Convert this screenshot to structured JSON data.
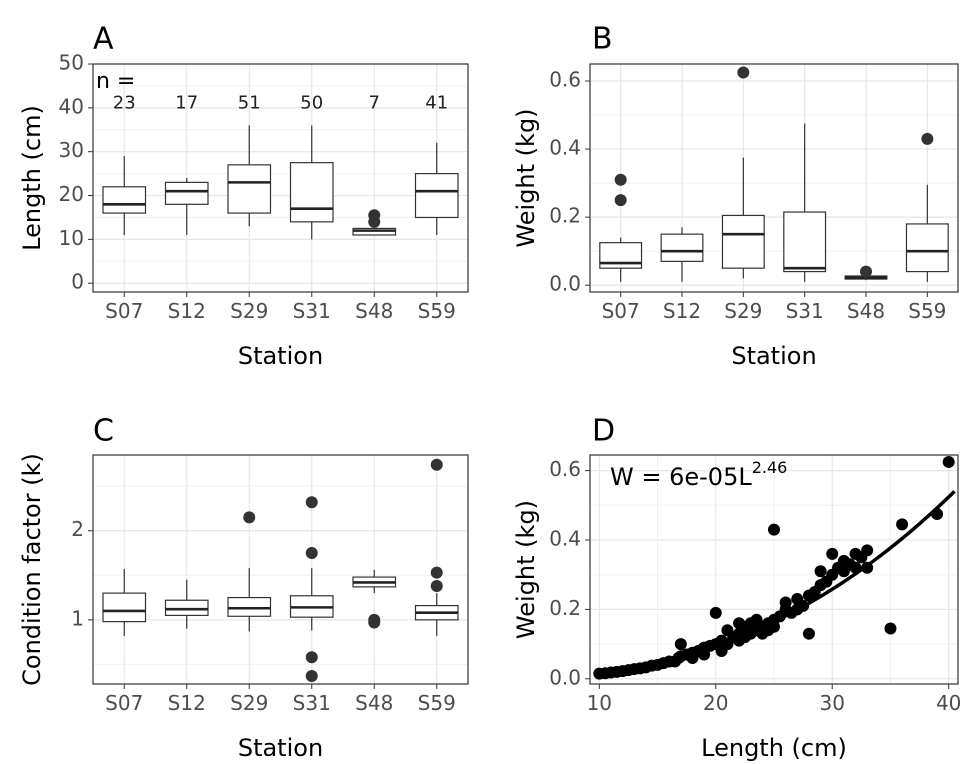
{
  "chart_data": [
    {
      "panel": "A",
      "type": "box",
      "xlabel": "Station",
      "ylabel": "Length (cm)",
      "ylim": [
        -2,
        50
      ],
      "yticks": [
        0,
        10,
        20,
        30,
        40,
        50
      ],
      "categories": [
        "S07",
        "S12",
        "S29",
        "S31",
        "S48",
        "S59"
      ],
      "n_label": "n =",
      "counts": [
        "23",
        "17",
        "51",
        "50",
        "7",
        "41"
      ],
      "boxes": [
        {
          "min": 11,
          "q1": 16,
          "median": 18,
          "q3": 22,
          "max": 29,
          "outliers": []
        },
        {
          "min": 11,
          "q1": 18,
          "median": 21,
          "q3": 23,
          "max": 24,
          "outliers": []
        },
        {
          "min": 13,
          "q1": 16,
          "median": 23,
          "q3": 27,
          "max": 36,
          "outliers": []
        },
        {
          "min": 10,
          "q1": 14,
          "median": 17,
          "q3": 27.5,
          "max": 36,
          "outliers": []
        },
        {
          "min": 11,
          "q1": 11,
          "median": 12,
          "q3": 12.5,
          "max": 13,
          "outliers": [
            14,
            15.5
          ]
        },
        {
          "min": 11,
          "q1": 15,
          "median": 21,
          "q3": 25,
          "max": 32,
          "outliers": []
        }
      ]
    },
    {
      "panel": "B",
      "type": "box",
      "xlabel": "Station",
      "ylabel": "Weight (kg)",
      "ylim": [
        -0.02,
        0.65
      ],
      "yticks": [
        "0.0",
        "0.2",
        "0.4",
        "0.6"
      ],
      "categories": [
        "S07",
        "S12",
        "S29",
        "S31",
        "S48",
        "S59"
      ],
      "boxes": [
        {
          "min": 0.01,
          "q1": 0.05,
          "median": 0.065,
          "q3": 0.125,
          "max": 0.14,
          "outliers": [
            0.25,
            0.31
          ]
        },
        {
          "min": 0.01,
          "q1": 0.07,
          "median": 0.1,
          "q3": 0.15,
          "max": 0.17,
          "outliers": []
        },
        {
          "min": 0.02,
          "q1": 0.05,
          "median": 0.15,
          "q3": 0.205,
          "max": 0.375,
          "outliers": [
            0.625
          ]
        },
        {
          "min": 0.01,
          "q1": 0.04,
          "median": 0.05,
          "q3": 0.215,
          "max": 0.475,
          "outliers": []
        },
        {
          "min": 0.015,
          "q1": 0.018,
          "median": 0.022,
          "q3": 0.027,
          "max": 0.03,
          "outliers": [
            0.04
          ]
        },
        {
          "min": 0.01,
          "q1": 0.04,
          "median": 0.1,
          "q3": 0.18,
          "max": 0.295,
          "outliers": [
            0.43
          ]
        }
      ]
    },
    {
      "panel": "C",
      "type": "box",
      "xlabel": "Station",
      "ylabel": "Condition factor (k)",
      "ylim": [
        0.28,
        2.85
      ],
      "yticks": [
        1,
        2
      ],
      "categories": [
        "S07",
        "S12",
        "S29",
        "S31",
        "S48",
        "S59"
      ],
      "boxes": [
        {
          "min": 0.82,
          "q1": 0.98,
          "median": 1.1,
          "q3": 1.3,
          "max": 1.57,
          "outliers": []
        },
        {
          "min": 0.9,
          "q1": 1.05,
          "median": 1.12,
          "q3": 1.22,
          "max": 1.45,
          "outliers": []
        },
        {
          "min": 0.87,
          "q1": 1.04,
          "median": 1.13,
          "q3": 1.25,
          "max": 1.58,
          "outliers": [
            2.15
          ]
        },
        {
          "min": 0.88,
          "q1": 1.03,
          "median": 1.14,
          "q3": 1.27,
          "max": 1.58,
          "outliers": [
            1.75,
            2.32,
            0.58,
            0.37
          ]
        },
        {
          "min": 1.3,
          "q1": 1.37,
          "median": 1.42,
          "q3": 1.48,
          "max": 1.56,
          "outliers": [
            0.97,
            1.0
          ]
        },
        {
          "min": 0.82,
          "q1": 1.0,
          "median": 1.08,
          "q3": 1.16,
          "max": 1.3,
          "outliers": [
            1.38,
            1.53,
            2.74
          ]
        }
      ]
    },
    {
      "panel": "D",
      "type": "scatter",
      "xlabel": "Length (cm)",
      "ylabel": "Weight (kg)",
      "xlim": [
        9.2,
        40.8
      ],
      "ylim": [
        -0.015,
        0.645
      ],
      "xticks": [
        10,
        20,
        30,
        40
      ],
      "yticks": [
        "0.0",
        "0.2",
        "0.4",
        "0.6"
      ],
      "formula": {
        "base": "W = 6e-05L",
        "exponent": "2.46"
      },
      "fit": {
        "a": 6e-05,
        "b": 2.46,
        "xmin": 10,
        "xmax": 40.5
      },
      "points": [
        [
          10,
          0.015
        ],
        [
          10.5,
          0.016
        ],
        [
          11,
          0.018
        ],
        [
          11.5,
          0.02
        ],
        [
          12,
          0.022
        ],
        [
          12.5,
          0.025
        ],
        [
          13,
          0.028
        ],
        [
          13.5,
          0.03
        ],
        [
          14,
          0.033
        ],
        [
          14.5,
          0.038
        ],
        [
          15,
          0.04
        ],
        [
          15.5,
          0.045
        ],
        [
          16,
          0.05
        ],
        [
          16.5,
          0.05
        ],
        [
          16.8,
          0.06
        ],
        [
          17,
          0.065
        ],
        [
          17,
          0.1
        ],
        [
          17.5,
          0.07
        ],
        [
          18,
          0.06
        ],
        [
          18,
          0.075
        ],
        [
          18.5,
          0.08
        ],
        [
          19,
          0.07
        ],
        [
          19,
          0.09
        ],
        [
          19.5,
          0.095
        ],
        [
          20,
          0.1
        ],
        [
          20,
          0.19
        ],
        [
          20.5,
          0.08
        ],
        [
          20.5,
          0.11
        ],
        [
          21,
          0.1
        ],
        [
          21,
          0.14
        ],
        [
          21.5,
          0.12
        ],
        [
          22,
          0.11
        ],
        [
          22,
          0.13
        ],
        [
          22,
          0.16
        ],
        [
          22.5,
          0.12
        ],
        [
          22.5,
          0.15
        ],
        [
          23,
          0.13
        ],
        [
          23,
          0.16
        ],
        [
          23.5,
          0.14
        ],
        [
          23.5,
          0.17
        ],
        [
          24,
          0.15
        ],
        [
          24,
          0.13
        ],
        [
          24.5,
          0.16
        ],
        [
          24.5,
          0.14
        ],
        [
          25,
          0.17
        ],
        [
          25,
          0.15
        ],
        [
          25,
          0.43
        ],
        [
          25.5,
          0.18
        ],
        [
          26,
          0.2
        ],
        [
          26,
          0.22
        ],
        [
          26.5,
          0.19
        ],
        [
          27,
          0.2
        ],
        [
          27,
          0.23
        ],
        [
          27.5,
          0.21
        ],
        [
          28,
          0.13
        ],
        [
          28,
          0.24
        ],
        [
          28.5,
          0.25
        ],
        [
          29,
          0.27
        ],
        [
          29,
          0.31
        ],
        [
          29.5,
          0.28
        ],
        [
          30,
          0.3
        ],
        [
          30,
          0.36
        ],
        [
          30.5,
          0.32
        ],
        [
          31,
          0.31
        ],
        [
          31,
          0.34
        ],
        [
          31.5,
          0.33
        ],
        [
          32,
          0.36
        ],
        [
          32,
          0.32
        ],
        [
          32.5,
          0.35
        ],
        [
          33,
          0.37
        ],
        [
          33,
          0.32
        ],
        [
          35,
          0.145
        ],
        [
          36,
          0.445
        ],
        [
          39,
          0.475
        ],
        [
          40,
          0.625
        ]
      ]
    }
  ]
}
